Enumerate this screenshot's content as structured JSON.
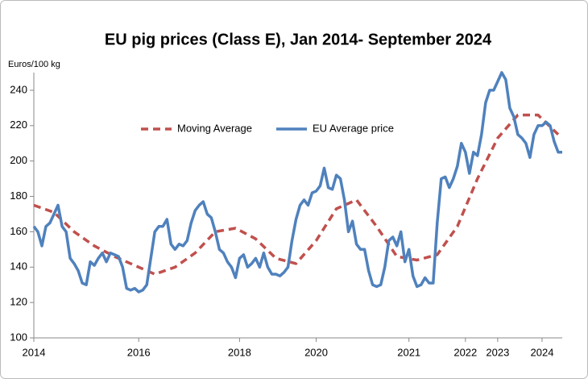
{
  "chart_data": {
    "type": "line",
    "title": "EU pig prices (Class  E), Jan 2014- September 2024",
    "y_label": "Euros/100 kg",
    "xlim": [
      0,
      131
    ],
    "xticks": [
      {
        "value": 0,
        "label": "2014"
      },
      {
        "value": 26,
        "label": "2016"
      },
      {
        "value": 51,
        "label": "2018"
      },
      {
        "value": 70,
        "label": "2020"
      },
      {
        "value": 93,
        "label": "2021"
      },
      {
        "value": 107,
        "label": "2022"
      },
      {
        "value": 115,
        "label": "2023"
      },
      {
        "value": 126,
        "label": "2024"
      }
    ],
    "ylim": [
      100,
      250
    ],
    "yticks": [
      100,
      120,
      140,
      160,
      180,
      200,
      220,
      240
    ],
    "legend": "top",
    "series": [
      {
        "name": "Moving Average",
        "color": "#c0504d",
        "dashed": true,
        "x": [
          0,
          5,
          10,
          15,
          20,
          25,
          30,
          35,
          40,
          45,
          50,
          55,
          60,
          65,
          70,
          75,
          80,
          85,
          90,
          95,
          100,
          105,
          110,
          115,
          120,
          125,
          130
        ],
        "values": [
          175,
          171,
          160,
          152,
          146,
          141,
          136,
          140,
          148,
          160,
          162,
          156,
          145,
          142,
          155,
          173,
          178,
          163,
          146,
          144,
          147,
          163,
          190,
          213,
          226,
          226,
          215
        ]
      },
      {
        "name": "EU Average price",
        "color": "#4f81bd",
        "dashed": false,
        "x": [
          0,
          1,
          2,
          3,
          4,
          5,
          6,
          7,
          8,
          9,
          10,
          11,
          12,
          13,
          14,
          15,
          16,
          17,
          18,
          19,
          20,
          21,
          22,
          23,
          24,
          25,
          26,
          27,
          28,
          29,
          30,
          31,
          32,
          33,
          34,
          35,
          36,
          37,
          38,
          39,
          40,
          41,
          42,
          43,
          44,
          45,
          46,
          47,
          48,
          49,
          50,
          51,
          52,
          53,
          54,
          55,
          56,
          57,
          58,
          59,
          60,
          61,
          62,
          63,
          64,
          65,
          66,
          67,
          68,
          69,
          70,
          71,
          72,
          73,
          74,
          75,
          76,
          77,
          78,
          79,
          80,
          81,
          82,
          83,
          84,
          85,
          86,
          87,
          88,
          89,
          90,
          91,
          92,
          93,
          94,
          95,
          96,
          97,
          98,
          99,
          100,
          101,
          102,
          103,
          104,
          105,
          106,
          107,
          108,
          109,
          110,
          111,
          112,
          113,
          114,
          115,
          116,
          117,
          118,
          119,
          120,
          121,
          122,
          123,
          124,
          125,
          126,
          127,
          128,
          129,
          130,
          131
        ],
        "values": [
          163,
          160,
          152,
          163,
          165,
          170,
          175,
          163,
          160,
          145,
          142,
          138,
          131,
          130,
          143,
          141,
          145,
          148,
          143,
          148,
          147,
          146,
          140,
          128,
          127,
          128,
          126,
          127,
          130,
          145,
          160,
          163,
          163,
          167,
          153,
          150,
          153,
          152,
          155,
          165,
          172,
          175,
          177,
          170,
          168,
          160,
          150,
          148,
          143,
          140,
          134,
          145,
          147,
          140,
          142,
          145,
          140,
          148,
          140,
          136,
          136,
          135,
          137,
          140,
          155,
          167,
          175,
          178,
          175,
          182,
          183,
          186,
          196,
          185,
          184,
          192,
          190,
          178,
          160,
          166,
          153,
          150,
          150,
          138,
          130,
          129,
          130,
          140,
          155,
          157,
          152,
          160,
          143,
          150,
          135,
          129,
          130,
          134,
          131,
          131,
          165,
          190,
          191,
          185,
          190,
          197,
          210,
          205,
          193,
          205,
          203,
          215,
          233,
          240,
          240,
          245,
          250,
          246,
          230,
          225,
          215,
          213,
          210,
          202,
          215,
          220,
          220,
          222,
          220,
          211,
          205,
          205
        ]
      }
    ]
  }
}
